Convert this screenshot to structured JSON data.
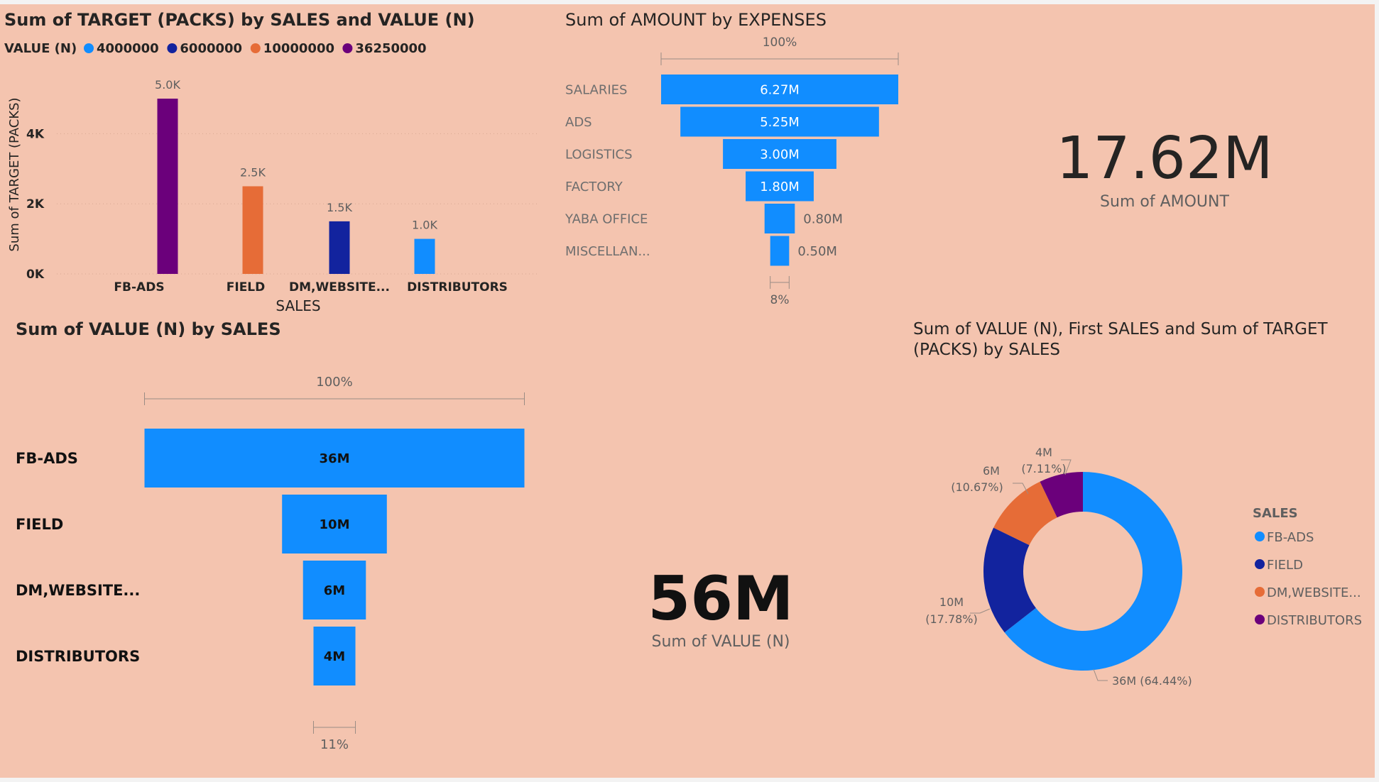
{
  "titles": {
    "col_chart": "Sum of TARGET (PACKS) by SALES and VALUE (N)",
    "funnel_expenses": "Sum of AMOUNT by EXPENSES",
    "funnel_sales": "Sum of VALUE (N) by SALES",
    "donut": "Sum of VALUE (N), First SALES and Sum of TARGET (PACKS) by SALES"
  },
  "cards": {
    "amount": {
      "value": "17.62M",
      "label": "Sum of AMOUNT"
    },
    "value": {
      "value": "56M",
      "label": "Sum of VALUE (N)"
    }
  },
  "colors": {
    "blue": "#118dff",
    "navy": "#12239e",
    "orange": "#e66c37",
    "purple": "#6b007b",
    "background": "#f4c4af"
  },
  "chart_data": [
    {
      "type": "bar",
      "title": "Sum of TARGET (PACKS) by SALES and VALUE (N)",
      "xlabel": "SALES",
      "ylabel": "Sum of TARGET (PACKS)",
      "ylim": [
        0,
        5000
      ],
      "yticks": [
        0,
        2000,
        4000
      ],
      "ytick_labels": [
        "0K",
        "2K",
        "4K"
      ],
      "legend_title": "VALUE (N)",
      "legend_position": "top-left",
      "legend": [
        {
          "name": "4000000",
          "color": "#118dff"
        },
        {
          "name": "6000000",
          "color": "#12239e"
        },
        {
          "name": "10000000",
          "color": "#e66c37"
        },
        {
          "name": "36250000",
          "color": "#6b007b"
        }
      ],
      "categories": [
        "FB-ADS",
        "FIELD",
        "DM,WEBSITE...",
        "DISTRIBUTORS"
      ],
      "bars": [
        {
          "category": "FB-ADS",
          "series": "36250000",
          "value": 5000,
          "label": "5.0K",
          "color": "#6b007b"
        },
        {
          "category": "FIELD",
          "series": "10000000",
          "value": 2500,
          "label": "2.5K",
          "color": "#e66c37"
        },
        {
          "category": "DM,WEBSITE...",
          "series": "6000000",
          "value": 1500,
          "label": "1.5K",
          "color": "#12239e"
        },
        {
          "category": "DISTRIBUTORS",
          "series": "4000000",
          "value": 1000,
          "label": "1.0K",
          "color": "#118dff"
        }
      ]
    },
    {
      "type": "bar",
      "subtype": "funnel",
      "title": "Sum of AMOUNT by EXPENSES",
      "top_percent": "100%",
      "bottom_percent": "8%",
      "categories": [
        "SALARIES",
        "ADS",
        "LOGISTICS",
        "FACTORY",
        "YABA OFFICE",
        "MISCELLAN..."
      ],
      "values": [
        6.27,
        5.25,
        3.0,
        1.8,
        0.8,
        0.5
      ],
      "labels": [
        "6.27M",
        "5.25M",
        "3.00M",
        "1.80M",
        "0.80M",
        "0.50M"
      ]
    },
    {
      "type": "bar",
      "subtype": "funnel",
      "title": "Sum of VALUE (N) by SALES",
      "top_percent": "100%",
      "bottom_percent": "11%",
      "categories": [
        "FB-ADS",
        "FIELD",
        "DM,WEBSITE...",
        "DISTRIBUTORS"
      ],
      "values": [
        36.25,
        10,
        6,
        4
      ],
      "labels": [
        "36M",
        "10M",
        "6M",
        "4M"
      ]
    },
    {
      "type": "pie",
      "subtype": "donut",
      "title": "Sum of VALUE (N), First SALES and Sum of TARGET (PACKS) by SALES",
      "legend_title": "SALES",
      "legend_position": "right",
      "slices": [
        {
          "name": "FB-ADS",
          "value": 36.25,
          "label": "36M (64.44%)",
          "color": "#118dff"
        },
        {
          "name": "FIELD",
          "value": 10,
          "label_top": "10M",
          "label_bottom": "(17.78%)",
          "color": "#12239e"
        },
        {
          "name": "DM,WEBSITE...",
          "value": 6,
          "label_top": "6M",
          "label_bottom": "(10.67%)",
          "color": "#e66c37"
        },
        {
          "name": "DISTRIBUTORS",
          "value": 4,
          "label_top": "4M",
          "label_bottom": "(7.11%)",
          "color": "#6b007b"
        }
      ]
    }
  ]
}
